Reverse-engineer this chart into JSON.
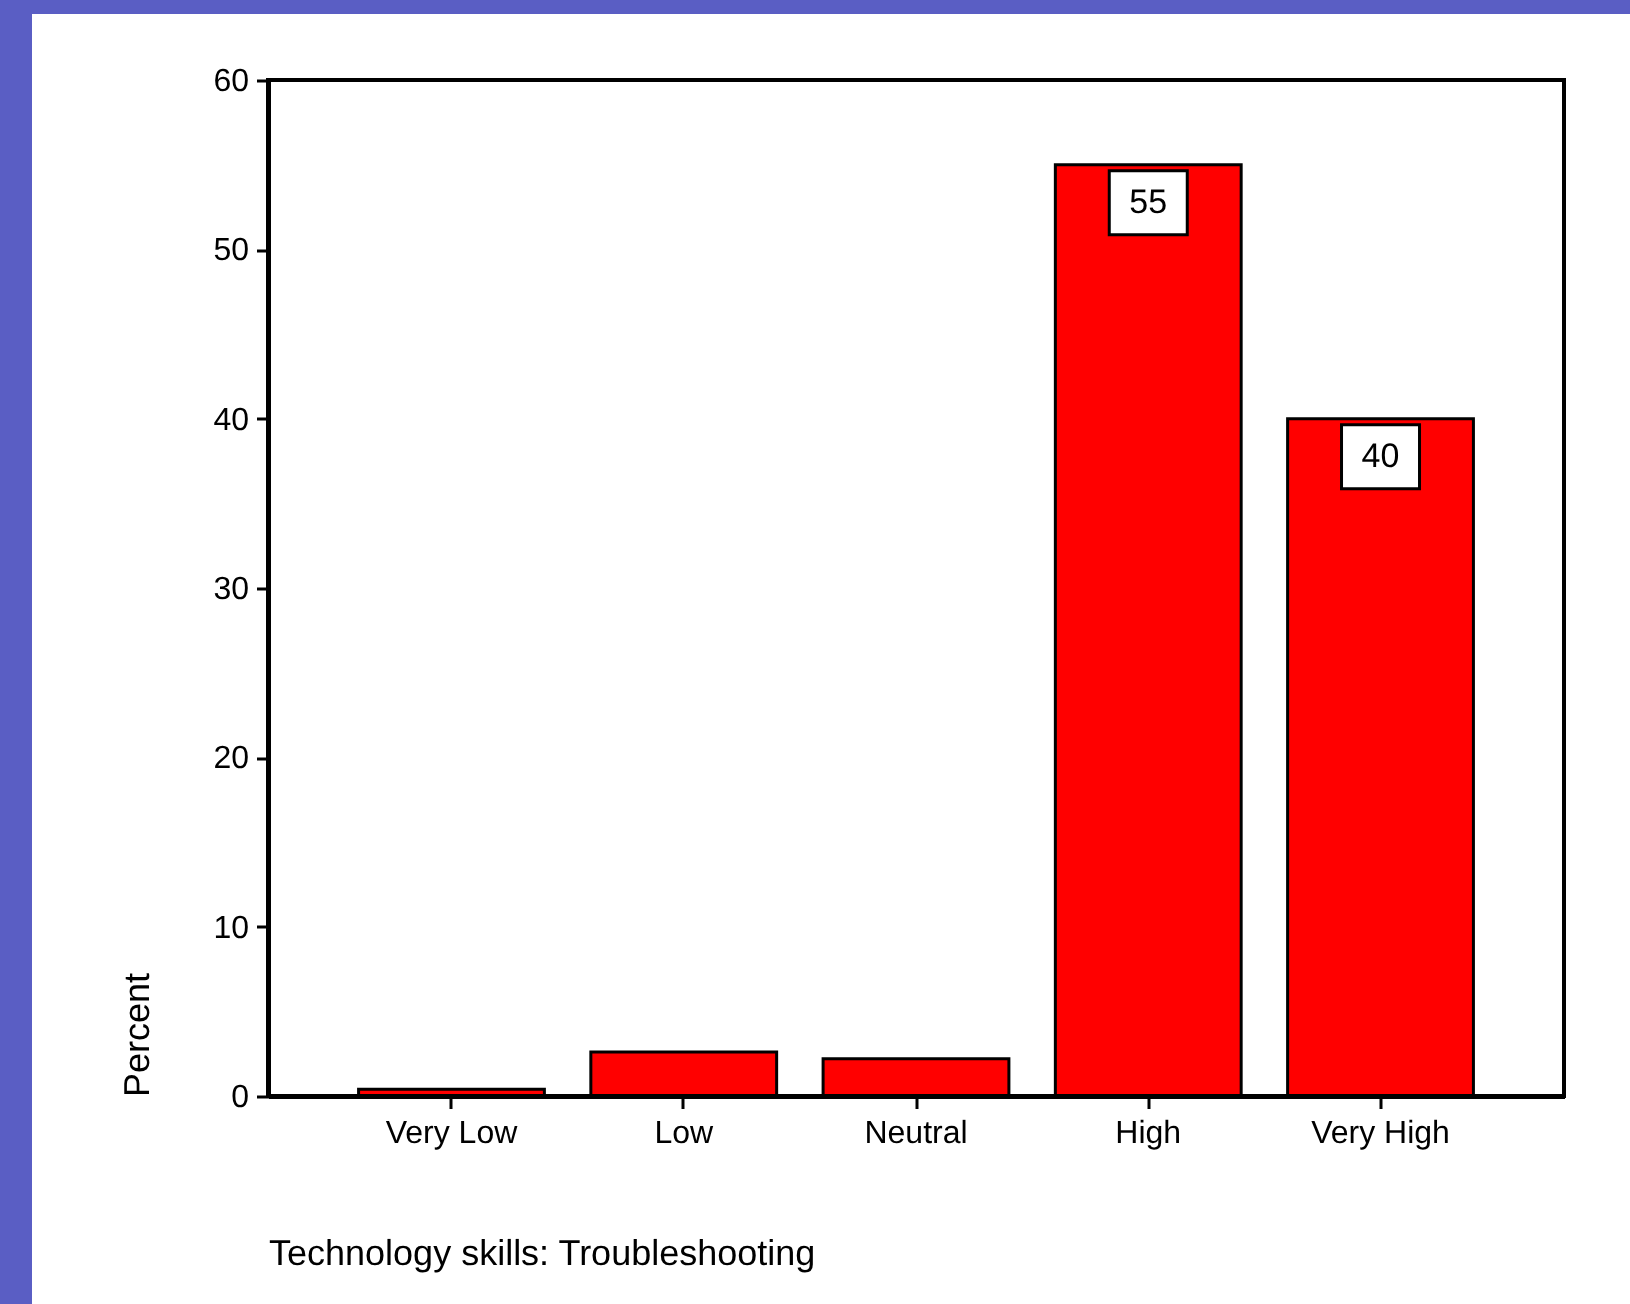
{
  "chart_data": {
    "type": "bar",
    "xlabel": "Technology skills: Troubleshooting",
    "ylabel": "Percent",
    "categories": [
      "Very Low",
      "Low",
      "Neutral",
      "High",
      "Very High"
    ],
    "values": [
      0.4,
      2.6,
      2.2,
      55,
      40
    ],
    "value_labels": [
      null,
      null,
      null,
      "55",
      "40"
    ],
    "color": "#ff0000",
    "ylim": [
      0,
      60
    ],
    "yticks": [
      0,
      10,
      20,
      30,
      40,
      50,
      60
    ]
  }
}
